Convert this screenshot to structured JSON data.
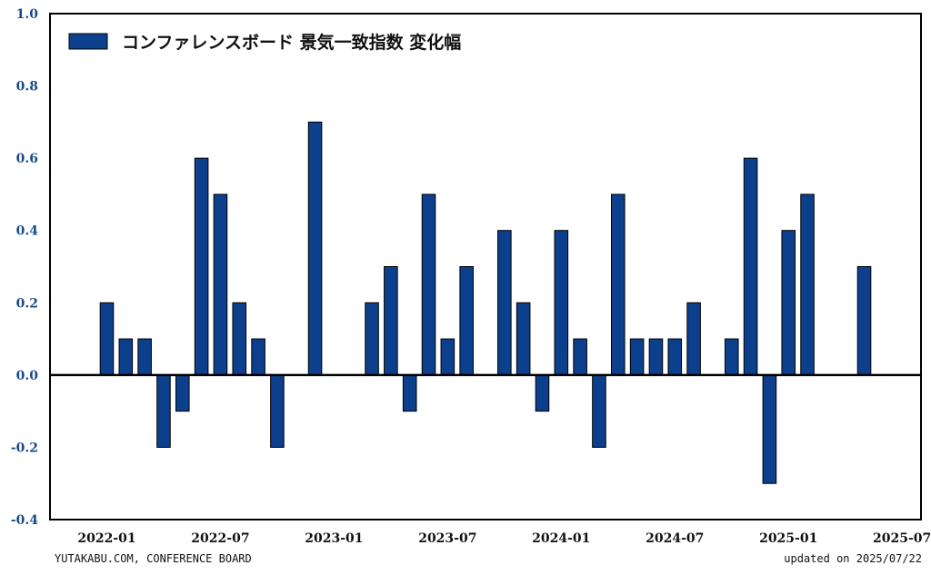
{
  "footer": {
    "source": "YUTAKABU.COM, CONFERENCE BOARD",
    "updated": "updated on 2025/07/22"
  },
  "colors": {
    "bar_fill": "#0c3f8c",
    "bar_edge": "#000000",
    "ytick_color": "#1a4a8a"
  },
  "chart_data": {
    "type": "bar",
    "title": "",
    "legend": {
      "label": "コンファレンスボード 景気一致指数 変化幅",
      "placement": "top-left"
    },
    "xlabel": "",
    "ylabel": "",
    "ylim": [
      -0.4,
      1.0
    ],
    "yticks": [
      "1.0",
      "0.8",
      "0.6",
      "0.4",
      "0.2",
      "0.0",
      "-0.2",
      "-0.4"
    ],
    "ytick_values": [
      1.0,
      0.8,
      0.6,
      0.4,
      0.2,
      0.0,
      -0.2,
      -0.4
    ],
    "xticks": [
      {
        "label": "2022-01",
        "month": "2022-01"
      },
      {
        "label": "2022-07",
        "month": "2022-07"
      },
      {
        "label": "2023-01",
        "month": "2023-01"
      },
      {
        "label": "2023-07",
        "month": "2023-07"
      },
      {
        "label": "2024-01",
        "month": "2024-01"
      },
      {
        "label": "2024-07",
        "month": "2024-07"
      },
      {
        "label": "2025-01",
        "month": "2025-01"
      },
      {
        "label": "2025-07",
        "month": "2025-07"
      }
    ],
    "x_range": [
      "2021-10",
      "2025-08"
    ],
    "grid": false,
    "series": [
      {
        "name": "コンファレンスボード 景気一致指数 変化幅",
        "points": [
          {
            "month": "2022-01",
            "value": 0.2
          },
          {
            "month": "2022-02",
            "value": 0.1
          },
          {
            "month": "2022-03",
            "value": 0.1
          },
          {
            "month": "2022-04",
            "value": -0.2
          },
          {
            "month": "2022-05",
            "value": -0.1
          },
          {
            "month": "2022-06",
            "value": 0.6
          },
          {
            "month": "2022-07",
            "value": 0.5
          },
          {
            "month": "2022-08",
            "value": 0.2
          },
          {
            "month": "2022-09",
            "value": 0.1
          },
          {
            "month": "2022-10",
            "value": -0.2
          },
          {
            "month": "2022-11",
            "value": 0.0
          },
          {
            "month": "2022-12",
            "value": 0.7
          },
          {
            "month": "2023-01",
            "value": 0.0
          },
          {
            "month": "2023-02",
            "value": 0.0
          },
          {
            "month": "2023-03",
            "value": 0.2
          },
          {
            "month": "2023-04",
            "value": 0.3
          },
          {
            "month": "2023-05",
            "value": -0.1
          },
          {
            "month": "2023-06",
            "value": 0.5
          },
          {
            "month": "2023-07",
            "value": 0.1
          },
          {
            "month": "2023-08",
            "value": 0.3
          },
          {
            "month": "2023-09",
            "value": 0.0
          },
          {
            "month": "2023-10",
            "value": 0.4
          },
          {
            "month": "2023-11",
            "value": 0.2
          },
          {
            "month": "2023-12",
            "value": -0.1
          },
          {
            "month": "2024-01",
            "value": 0.4
          },
          {
            "month": "2024-02",
            "value": 0.1
          },
          {
            "month": "2024-03",
            "value": -0.2
          },
          {
            "month": "2024-04",
            "value": 0.5
          },
          {
            "month": "2024-05",
            "value": 0.1
          },
          {
            "month": "2024-06",
            "value": 0.1
          },
          {
            "month": "2024-07",
            "value": 0.1
          },
          {
            "month": "2024-08",
            "value": 0.2
          },
          {
            "month": "2024-09",
            "value": 0.0
          },
          {
            "month": "2024-10",
            "value": 0.1
          },
          {
            "month": "2024-11",
            "value": 0.6
          },
          {
            "month": "2024-12",
            "value": -0.3
          },
          {
            "month": "2025-01",
            "value": 0.4
          },
          {
            "month": "2025-02",
            "value": 0.5
          },
          {
            "month": "2025-03",
            "value": 0.0
          },
          {
            "month": "2025-04",
            "value": 0.0
          },
          {
            "month": "2025-05",
            "value": 0.3
          }
        ]
      }
    ]
  }
}
